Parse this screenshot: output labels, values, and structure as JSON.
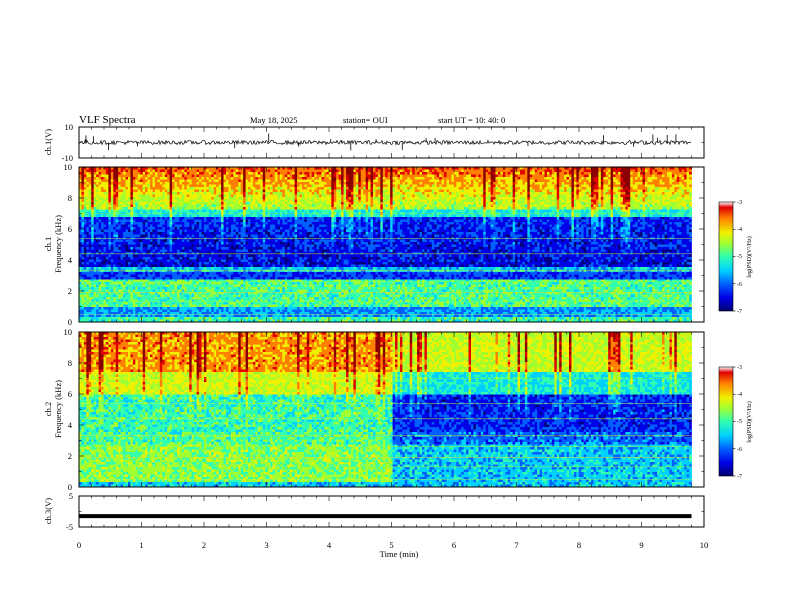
{
  "header": {
    "title": "VLF Spectra",
    "date": "May 18, 2025",
    "station": "station= OUI",
    "start": "start  UT  =   10: 40: 0"
  },
  "colors": {
    "colormap": [
      "#00007a",
      "#0000e6",
      "#0060ff",
      "#00d0ff",
      "#30ffb0",
      "#a0ff30",
      "#f0f000",
      "#ff8000",
      "#e00000",
      "#8a0000"
    ]
  },
  "chart_data": [
    {
      "type": "line",
      "id": "ch1-waveform",
      "ylabel": "ch.1(V)",
      "ylim": [
        -10,
        10
      ],
      "yticks": [
        "10",
        "-10"
      ],
      "xlim": [
        0,
        10
      ],
      "x": [
        0,
        1,
        2,
        3,
        4,
        5,
        6,
        7,
        8,
        9,
        9.8
      ],
      "y": [
        0,
        0,
        0,
        0,
        0,
        0,
        0,
        0,
        0,
        0,
        0
      ],
      "grid": false
    },
    {
      "type": "heatmap",
      "id": "ch1-spectrogram",
      "ylabel": "Frequency (kHz)",
      "channel_label": "ch.1",
      "xlim": [
        0,
        10
      ],
      "ylim": [
        0,
        10
      ],
      "yticks": [
        "0",
        "2",
        "4",
        "6",
        "8",
        "10"
      ],
      "data_end_min": 9.8,
      "colorbar": {
        "label": "log(PSD)(V²/Hz)",
        "range": [
          -7,
          -3
        ],
        "ticks": [
          "-3",
          "-4",
          "-5",
          "-6",
          "-7"
        ]
      }
    },
    {
      "type": "heatmap",
      "id": "ch2-spectrogram",
      "ylabel": "Frequency (kHz)",
      "channel_label": "ch.2",
      "xlim": [
        0,
        10
      ],
      "ylim": [
        0,
        10
      ],
      "yticks": [
        "0",
        "2",
        "4",
        "6",
        "8",
        "10"
      ],
      "data_end_min": 9.8,
      "colorbar": {
        "label": "log(PSD)(V²/Hz)",
        "range": [
          -7,
          -3
        ],
        "ticks": [
          "-3",
          "-4",
          "-5",
          "-6",
          "-7"
        ]
      }
    },
    {
      "type": "line",
      "id": "ch3-waveform",
      "ylabel": "ch.3(V)",
      "ylim": [
        -5,
        5
      ],
      "yticks": [
        "5",
        "-5"
      ],
      "xlim": [
        0,
        10
      ],
      "x": [
        0,
        9.8
      ],
      "y": [
        -1.5,
        -1.5
      ],
      "xlabel": "Time  (min)",
      "xticks": [
        "0",
        "1",
        "2",
        "3",
        "4",
        "5",
        "6",
        "7",
        "8",
        "9",
        "10"
      ],
      "grid": false
    }
  ]
}
